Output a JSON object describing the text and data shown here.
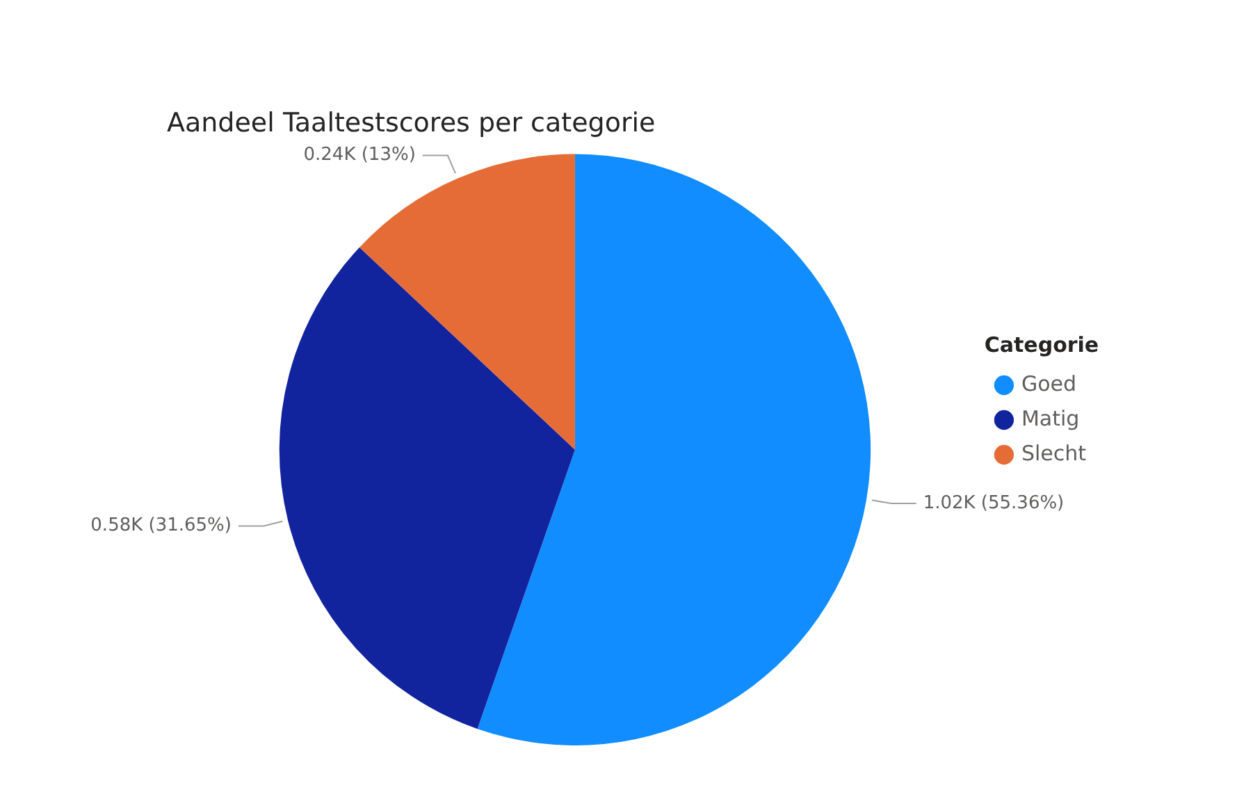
{
  "chart_data": {
    "type": "pie",
    "title": "Aandeel Taaltestscores per categorie",
    "legend_title": "Categorie",
    "legend": "right",
    "categories": [
      "Goed",
      "Matig",
      "Slecht"
    ],
    "values": [
      55.36,
      31.65,
      13
    ],
    "colors": [
      "#118dff",
      "#12239e",
      "#e66c37"
    ],
    "value_labels": [
      "1.02K (55.36%)",
      "0.58K (31.65%)",
      "0.24K (13%)"
    ]
  }
}
